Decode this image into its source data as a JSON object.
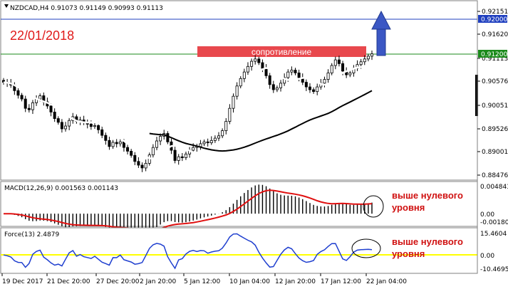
{
  "main": {
    "header": "NZDCAD,H4  0.91073 0.91149 0.90993 0.91113",
    "date_label": "22/01/2018",
    "resistance_label": "сопротивление",
    "price_ticks": [
      "0.92151",
      "0.91620",
      "0.91113",
      "0.90576",
      "0.90051",
      "0.89526",
      "0.89001",
      "0.88476"
    ],
    "badges": [
      {
        "text": "0.92000",
        "color": "#1f3fbf"
      },
      {
        "text": "0.91200",
        "color": "#1a8a1a"
      }
    ]
  },
  "macd": {
    "header": "MACD(12,26,9) 0.001563 0.001143",
    "ticks": [
      "0.004843",
      "0.00",
      "-0.001806"
    ],
    "note_lines": [
      "выше нулевого",
      "уровня"
    ]
  },
  "force": {
    "header": "Force(13) 2.4879",
    "ticks": [
      "15.4604",
      "0.00",
      "-10.4695"
    ],
    "note_lines": [
      "выше нулевого",
      "уровня"
    ]
  },
  "x_axis": {
    "labels": [
      "19 Dec 2017",
      "21 Dec 20:00",
      "27 Dec 20:00",
      "2 Jan 20:00",
      "5 Jan 12:00",
      "10 Jan 04:00",
      "12 Jan 20:00",
      "17 Jan 12:00",
      "22 Jan 04:00"
    ]
  },
  "colors": {
    "candle": "#000000",
    "fast_ma": "#ffffff",
    "slow_ma": "#000000",
    "blue_line": "#1f3fbf",
    "green_line": "#1a8a1a",
    "resistance_box": "#e8484d",
    "arrow": "#3b57c4",
    "macd_signal": "#e01010",
    "force_line": "#1f3fcf",
    "zero_line": "#ffff00"
  },
  "chart_data": {
    "type": "candlestick",
    "symbol": "NZDCAD",
    "timeframe": "H4",
    "price_range": [
      0.8843,
      0.9222
    ],
    "levels": [
      0.92,
      0.912
    ],
    "closes": [
      0.905,
      0.9048,
      0.9044,
      0.9032,
      0.9022,
      0.9014,
      0.8994,
      0.8991,
      0.9006,
      0.9014,
      0.9021,
      0.9008,
      0.8999,
      0.8986,
      0.8972,
      0.8964,
      0.895,
      0.8956,
      0.8968,
      0.8976,
      0.8966,
      0.8969,
      0.8964,
      0.896,
      0.8955,
      0.8957,
      0.8948,
      0.8936,
      0.8925,
      0.8912,
      0.8921,
      0.8918,
      0.8922,
      0.891,
      0.8902,
      0.8893,
      0.888,
      0.8872,
      0.8866,
      0.8876,
      0.8894,
      0.891,
      0.8924,
      0.8934,
      0.894,
      0.8922,
      0.8904,
      0.8882,
      0.889,
      0.8888,
      0.8896,
      0.8904,
      0.891,
      0.8912,
      0.8918,
      0.8922,
      0.892,
      0.8925,
      0.893,
      0.8935,
      0.8946,
      0.8966,
      0.8994,
      0.902,
      0.9042,
      0.9058,
      0.9072,
      0.9084,
      0.9095,
      0.91,
      0.9092,
      0.908,
      0.9064,
      0.9045,
      0.9034,
      0.9038,
      0.9048,
      0.906,
      0.9072,
      0.9076,
      0.907,
      0.906,
      0.905,
      0.904,
      0.9034,
      0.903,
      0.904,
      0.9048,
      0.9056,
      0.907,
      0.9086,
      0.9098,
      0.909,
      0.9074,
      0.9066,
      0.907,
      0.908,
      0.9088,
      0.9094,
      0.91,
      0.9106,
      0.9111
    ]
  }
}
